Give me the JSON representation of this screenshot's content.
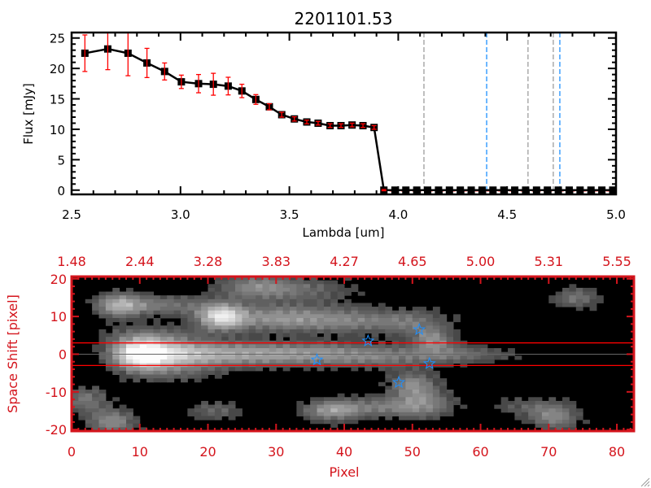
{
  "colors": {
    "axis_top": "#000000",
    "axis_bottom": "#d4141c",
    "error_bar": "#ff0000",
    "marker": "#000000",
    "dashed_gray": "#808080",
    "dashed_blue": "#1e90ff",
    "star": "#1e90ff",
    "aperture_line": "#ff0000"
  },
  "chart_data": [
    {
      "type": "line",
      "title": "2201101.53",
      "xlabel": "Lambda [um]",
      "ylabel": "Flux [mJy]",
      "xlim": [
        2.5,
        5.0
      ],
      "ylim": [
        -0.7,
        25.9
      ],
      "xticks": [
        "2.5",
        "3.0",
        "3.5",
        "4.0",
        "4.5",
        "5.0"
      ],
      "yticks": [
        "0",
        "5",
        "10",
        "15",
        "20",
        "25"
      ],
      "x": [
        2.561,
        2.666,
        2.759,
        2.846,
        2.927,
        3.004,
        3.083,
        3.151,
        3.219,
        3.282,
        3.346,
        3.408,
        3.465,
        3.523,
        3.58,
        3.632,
        3.687,
        3.737,
        3.788,
        3.838,
        3.889,
        3.934,
        3.985,
        4.035,
        4.085,
        4.135,
        4.185,
        4.235,
        4.285,
        4.335,
        4.385,
        4.435,
        4.485,
        4.535,
        4.585,
        4.635,
        4.685,
        4.735,
        4.785,
        4.835,
        4.885,
        4.935,
        4.985
      ],
      "y": [
        22.5,
        23.2,
        22.5,
        20.9,
        19.5,
        17.8,
        17.5,
        17.4,
        17.1,
        16.3,
        14.9,
        13.7,
        12.4,
        11.7,
        11.2,
        11.0,
        10.6,
        10.6,
        10.7,
        10.6,
        10.3,
        0,
        0,
        0,
        0,
        0,
        0,
        0,
        0,
        0,
        0,
        0,
        0,
        0,
        0,
        0,
        0,
        0,
        0,
        0,
        0,
        0,
        0
      ],
      "yerr": [
        3.0,
        3.4,
        3.7,
        2.4,
        1.4,
        1.1,
        1.5,
        1.8,
        1.45,
        1.1,
        0.8,
        0.5,
        0.4,
        0.35,
        0.3,
        0.3,
        0.3,
        0.3,
        0.3,
        0.3,
        0.3,
        0.1,
        0,
        0,
        0,
        0,
        0,
        0,
        0,
        0,
        0,
        0,
        0,
        0,
        0,
        0,
        0,
        0,
        0,
        0,
        0,
        0,
        0
      ],
      "vlines_gray": [
        4.118,
        4.596,
        4.712
      ],
      "vlines_blue": [
        4.406,
        4.742
      ],
      "hline_red_dashed": 0,
      "grid": false
    },
    {
      "type": "heatmap",
      "xlabel": "Pixel",
      "ylabel": "Space Shift [pixel]",
      "xlim": [
        0,
        82.5
      ],
      "ylim": [
        -20.4,
        20.6
      ],
      "xticks": [
        "0",
        "10",
        "20",
        "30",
        "40",
        "50",
        "60",
        "70",
        "80"
      ],
      "yticks": [
        "-20",
        "-10",
        "0",
        "10",
        "20"
      ],
      "top_xticks": [
        "1.48",
        "2.44",
        "3.28",
        "3.83",
        "4.27",
        "4.65",
        "5.00",
        "5.31",
        "5.55"
      ],
      "aperture_lines": [
        3,
        -3
      ],
      "center_line": 0,
      "stars": [
        {
          "x": 43.5,
          "y": 3.5
        },
        {
          "x": 51,
          "y": 6.5
        },
        {
          "x": 36,
          "y": -1.5
        },
        {
          "x": 52.5,
          "y": -2.5
        },
        {
          "x": 48,
          "y": -7.5
        }
      ],
      "grid": false
    }
  ]
}
